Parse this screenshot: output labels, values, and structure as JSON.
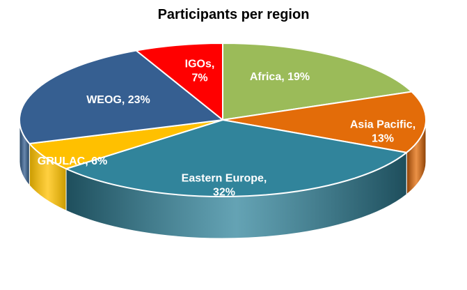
{
  "chart_data": {
    "type": "pie",
    "title": "Participants per region",
    "slices": [
      {
        "label": "Africa, 19%",
        "name": "Africa",
        "value": 19,
        "color": "#9BBB59",
        "side": "#6E8A3A",
        "text_color": "#ffffff"
      },
      {
        "label": "Asia Pacific, 13%",
        "name": "Asia Pacific",
        "value": 13,
        "color": "#E36C09",
        "side": "#8A3F05",
        "text_color": "#ffffff"
      },
      {
        "label": "Eastern Europe, 32%",
        "name": "Eastern Europe",
        "value": 32,
        "color": "#31849B",
        "side": "#1E4E5C",
        "text_color": "#ffffff"
      },
      {
        "label": "GRULAC, 6%",
        "name": "GRULAC",
        "value": 6,
        "color": "#FFC000",
        "side": "#C99A00",
        "text_color": "#ffffff"
      },
      {
        "label": "WEOG, 23%",
        "name": "WEOG",
        "value": 23,
        "color": "#365F91",
        "side": "#22405F",
        "text_color": "#ffffff"
      },
      {
        "label": "IGOs, 7%",
        "name": "IGOs",
        "value": 7,
        "color": "#FF0000",
        "side": "#B00000",
        "text_color": "#ffffff"
      }
    ],
    "legend": "none",
    "style": "3d-exploded-depth"
  }
}
